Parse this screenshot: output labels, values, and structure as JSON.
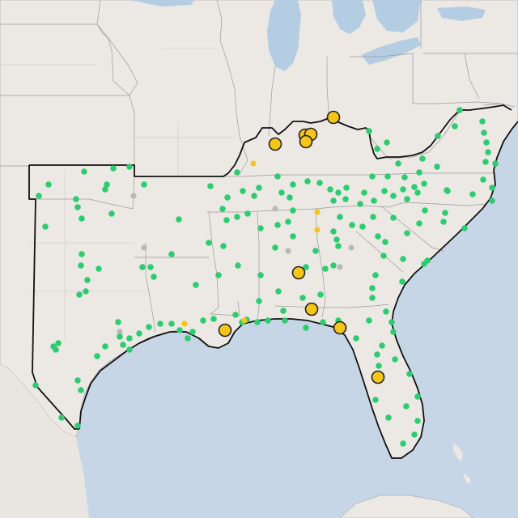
{
  "map": {
    "colors": {
      "land": "#ece8e4",
      "water": "#c6d6e6",
      "lake": "#b5cde3",
      "station": "#2ecc71",
      "highlight": "#f5c518",
      "inactive": "#b8b8b8",
      "outline": "#111111"
    },
    "legend": []
  }
}
